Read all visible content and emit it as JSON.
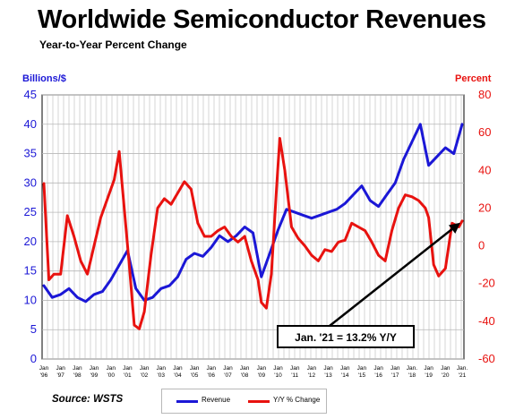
{
  "header": {
    "title": "Worldwide Semiconductor Revenues",
    "subtitle": "Year-to-Year Percent Change"
  },
  "axes": {
    "left_unit": "Billions/$",
    "right_unit": "Percent"
  },
  "source": "Source: WSTS",
  "callout": "Jan. '21 = 13.2% Y/Y",
  "legend": {
    "revenue": "Revenue",
    "yoy": "Y/Y % Change"
  },
  "colors": {
    "revenue": "#1b17d6",
    "yoy": "#e8120f",
    "grid": "#b8b8b8",
    "plot_bg": "#ffffff"
  },
  "chart_data": {
    "type": "line",
    "grid": true,
    "x_ticks": [
      {
        "month": "Jan",
        "year": "'96"
      },
      {
        "month": "Jan",
        "year": "'97"
      },
      {
        "month": "Jan",
        "year": "'98"
      },
      {
        "month": "Jan",
        "year": "'99"
      },
      {
        "month": "Jan",
        "year": "'00"
      },
      {
        "month": "Jan",
        "year": "'01"
      },
      {
        "month": "Jan",
        "year": "'02"
      },
      {
        "month": "Jan",
        "year": "'03"
      },
      {
        "month": "Jan",
        "year": "'04"
      },
      {
        "month": "Jan",
        "year": "'05"
      },
      {
        "month": "Jan",
        "year": "'06"
      },
      {
        "month": "Jan",
        "year": "'07"
      },
      {
        "month": "Jan",
        "year": "'08"
      },
      {
        "month": "Jan",
        "year": "'09"
      },
      {
        "month": "Jan",
        "year": "'10"
      },
      {
        "month": "Jan",
        "year": "'11"
      },
      {
        "month": "Jan",
        "year": "'12"
      },
      {
        "month": "Jan",
        "year": "'13"
      },
      {
        "month": "Jan",
        "year": "'14"
      },
      {
        "month": "Jan",
        "year": "'15"
      },
      {
        "month": "Jan",
        "year": "'16"
      },
      {
        "month": "Jan",
        "year": "'17"
      },
      {
        "month": "Jan.",
        "year": "'18"
      },
      {
        "month": "Jan",
        "year": "'19"
      },
      {
        "month": "Jan",
        "year": "'20"
      },
      {
        "month": "Jan.",
        "year": "'21"
      }
    ],
    "y_left": {
      "label": "Billions/$",
      "min": 0,
      "max": 45,
      "ticks": [
        0,
        5,
        10,
        15,
        20,
        25,
        30,
        35,
        40,
        45
      ]
    },
    "y_right": {
      "label": "Percent",
      "min": -60,
      "max": 80,
      "ticks": [
        -60,
        -40,
        -20,
        0,
        20,
        40,
        60,
        80
      ]
    },
    "series": [
      {
        "name": "Revenue",
        "axis": "left",
        "x": [
          1996.0,
          1996.5,
          1997.0,
          1997.5,
          1998.0,
          1998.5,
          1999.0,
          1999.5,
          2000.0,
          2000.5,
          2001.0,
          2001.5,
          2002.0,
          2002.5,
          2003.0,
          2003.5,
          2004.0,
          2004.5,
          2005.0,
          2005.5,
          2006.0,
          2006.5,
          2007.0,
          2007.5,
          2008.0,
          2008.5,
          2009.0,
          2009.5,
          2010.0,
          2010.5,
          2011.0,
          2011.5,
          2012.0,
          2012.5,
          2013.0,
          2013.5,
          2014.0,
          2014.5,
          2015.0,
          2015.5,
          2016.0,
          2016.5,
          2017.0,
          2017.5,
          2018.0,
          2018.5,
          2019.0,
          2019.5,
          2020.0,
          2020.5,
          2021.0
        ],
        "y": [
          12.5,
          10.5,
          11.0,
          12.0,
          10.5,
          9.8,
          11.0,
          11.5,
          13.5,
          16.0,
          18.5,
          12.0,
          10.0,
          10.5,
          12.0,
          12.5,
          14.0,
          17.0,
          18.0,
          17.5,
          19.0,
          21.0,
          20.0,
          21.0,
          22.5,
          21.5,
          14.0,
          18.0,
          22.0,
          25.5,
          25.0,
          24.5,
          24.0,
          24.5,
          25.0,
          25.5,
          26.5,
          28.0,
          29.5,
          27.0,
          26.0,
          28.0,
          30.0,
          34.0,
          37.0,
          40.0,
          33.0,
          34.5,
          36.0,
          35.0,
          40.0
        ]
      },
      {
        "name": "Y/Y % Change",
        "axis": "right",
        "x": [
          1996.0,
          1996.3,
          1996.6,
          1997.0,
          1997.4,
          1997.8,
          1998.2,
          1998.6,
          1999.0,
          1999.4,
          1999.8,
          2000.2,
          2000.5,
          2000.8,
          2001.1,
          2001.4,
          2001.7,
          2002.0,
          2002.4,
          2002.8,
          2003.2,
          2003.6,
          2004.0,
          2004.4,
          2004.8,
          2005.2,
          2005.6,
          2006.0,
          2006.4,
          2006.8,
          2007.2,
          2007.6,
          2008.0,
          2008.4,
          2008.8,
          2009.0,
          2009.3,
          2009.6,
          2009.9,
          2010.1,
          2010.4,
          2010.8,
          2011.2,
          2011.6,
          2012.0,
          2012.4,
          2012.8,
          2013.2,
          2013.6,
          2014.0,
          2014.4,
          2014.8,
          2015.2,
          2015.6,
          2016.0,
          2016.4,
          2016.8,
          2017.2,
          2017.6,
          2018.0,
          2018.4,
          2018.8,
          2019.0,
          2019.3,
          2019.6,
          2020.0,
          2020.4,
          2020.8,
          2021.0
        ],
        "y": [
          33,
          -18,
          -15,
          -15,
          16,
          5,
          -8,
          -15,
          0,
          15,
          25,
          35,
          50,
          20,
          -10,
          -42,
          -44,
          -35,
          -5,
          20,
          25,
          22,
          28,
          34,
          30,
          12,
          5,
          5,
          8,
          10,
          5,
          2,
          5,
          -8,
          -18,
          -30,
          -33,
          -15,
          30,
          57,
          40,
          10,
          4,
          0,
          -5,
          -8,
          -2,
          -3,
          2,
          3,
          12,
          10,
          8,
          2,
          -5,
          -8,
          8,
          20,
          27,
          26,
          24,
          20,
          15,
          -10,
          -16,
          -12,
          12,
          10,
          13.2
        ]
      }
    ]
  }
}
